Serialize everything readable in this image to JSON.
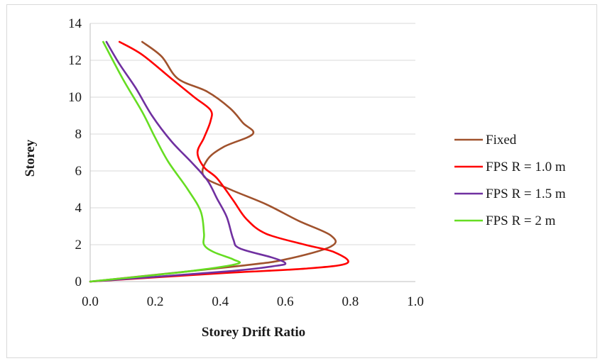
{
  "chart_data": {
    "type": "line",
    "title": "",
    "xlabel": "Storey Drift Ratio",
    "ylabel": "Storey",
    "xlim": [
      0,
      1.0
    ],
    "ylim": [
      0,
      14
    ],
    "x_ticks": [
      "0.0",
      "0.2",
      "0.4",
      "0.6",
      "0.8",
      "1.0"
    ],
    "y_ticks": [
      "0",
      "2",
      "4",
      "6",
      "8",
      "10",
      "12",
      "14"
    ],
    "grid": "horizontal",
    "legend_position": "right",
    "series": [
      {
        "name": "Fixed",
        "color": "#A0522D",
        "points": [
          [
            0,
            0
          ],
          [
            0.46,
            0.85
          ],
          [
            0.6,
            1.2
          ],
          [
            0.74,
            1.9
          ],
          [
            0.74,
            2.5
          ],
          [
            0.64,
            3.3
          ],
          [
            0.54,
            4.2
          ],
          [
            0.43,
            5.0
          ],
          [
            0.35,
            5.7
          ],
          [
            0.36,
            6.6
          ],
          [
            0.41,
            7.3
          ],
          [
            0.5,
            8.0
          ],
          [
            0.47,
            8.6
          ],
          [
            0.43,
            9.4
          ],
          [
            0.36,
            10.3
          ],
          [
            0.27,
            11.0
          ],
          [
            0.22,
            12.2
          ],
          [
            0.16,
            13.0
          ]
        ]
      },
      {
        "name": "FPS R = 1.0 m",
        "color": "#FF0000",
        "points": [
          [
            0,
            0
          ],
          [
            0.4,
            0.45
          ],
          [
            0.66,
            0.7
          ],
          [
            0.79,
            1.0
          ],
          [
            0.75,
            1.6
          ],
          [
            0.66,
            2.0
          ],
          [
            0.54,
            2.6
          ],
          [
            0.48,
            3.4
          ],
          [
            0.44,
            4.4
          ],
          [
            0.39,
            5.6
          ],
          [
            0.35,
            6.2
          ],
          [
            0.33,
            7.0
          ],
          [
            0.35,
            7.8
          ],
          [
            0.37,
            8.7
          ],
          [
            0.37,
            9.3
          ],
          [
            0.32,
            10.0
          ],
          [
            0.25,
            11.0
          ],
          [
            0.16,
            12.3
          ],
          [
            0.09,
            13.0
          ]
        ]
      },
      {
        "name": "FPS R = 1.5 m",
        "color": "#7030A0",
        "points": [
          [
            0,
            0
          ],
          [
            0.42,
            0.55
          ],
          [
            0.57,
            0.85
          ],
          [
            0.6,
            1.0
          ],
          [
            0.56,
            1.3
          ],
          [
            0.46,
            1.8
          ],
          [
            0.44,
            2.3
          ],
          [
            0.42,
            3.5
          ],
          [
            0.39,
            4.5
          ],
          [
            0.36,
            5.5
          ],
          [
            0.31,
            6.5
          ],
          [
            0.25,
            7.6
          ],
          [
            0.19,
            9.0
          ],
          [
            0.14,
            10.5
          ],
          [
            0.09,
            11.8
          ],
          [
            0.05,
            13.0
          ]
        ]
      },
      {
        "name": "FPS R = 2 m",
        "color": "#66DD22",
        "points": [
          [
            0,
            0
          ],
          [
            0.3,
            0.55
          ],
          [
            0.45,
            0.95
          ],
          [
            0.44,
            1.2
          ],
          [
            0.38,
            1.6
          ],
          [
            0.35,
            2.0
          ],
          [
            0.35,
            2.6
          ],
          [
            0.34,
            3.8
          ],
          [
            0.3,
            5.0
          ],
          [
            0.24,
            6.5
          ],
          [
            0.2,
            7.8
          ],
          [
            0.16,
            9.2
          ],
          [
            0.1,
            11.0
          ],
          [
            0.04,
            13.0
          ]
        ]
      }
    ]
  }
}
